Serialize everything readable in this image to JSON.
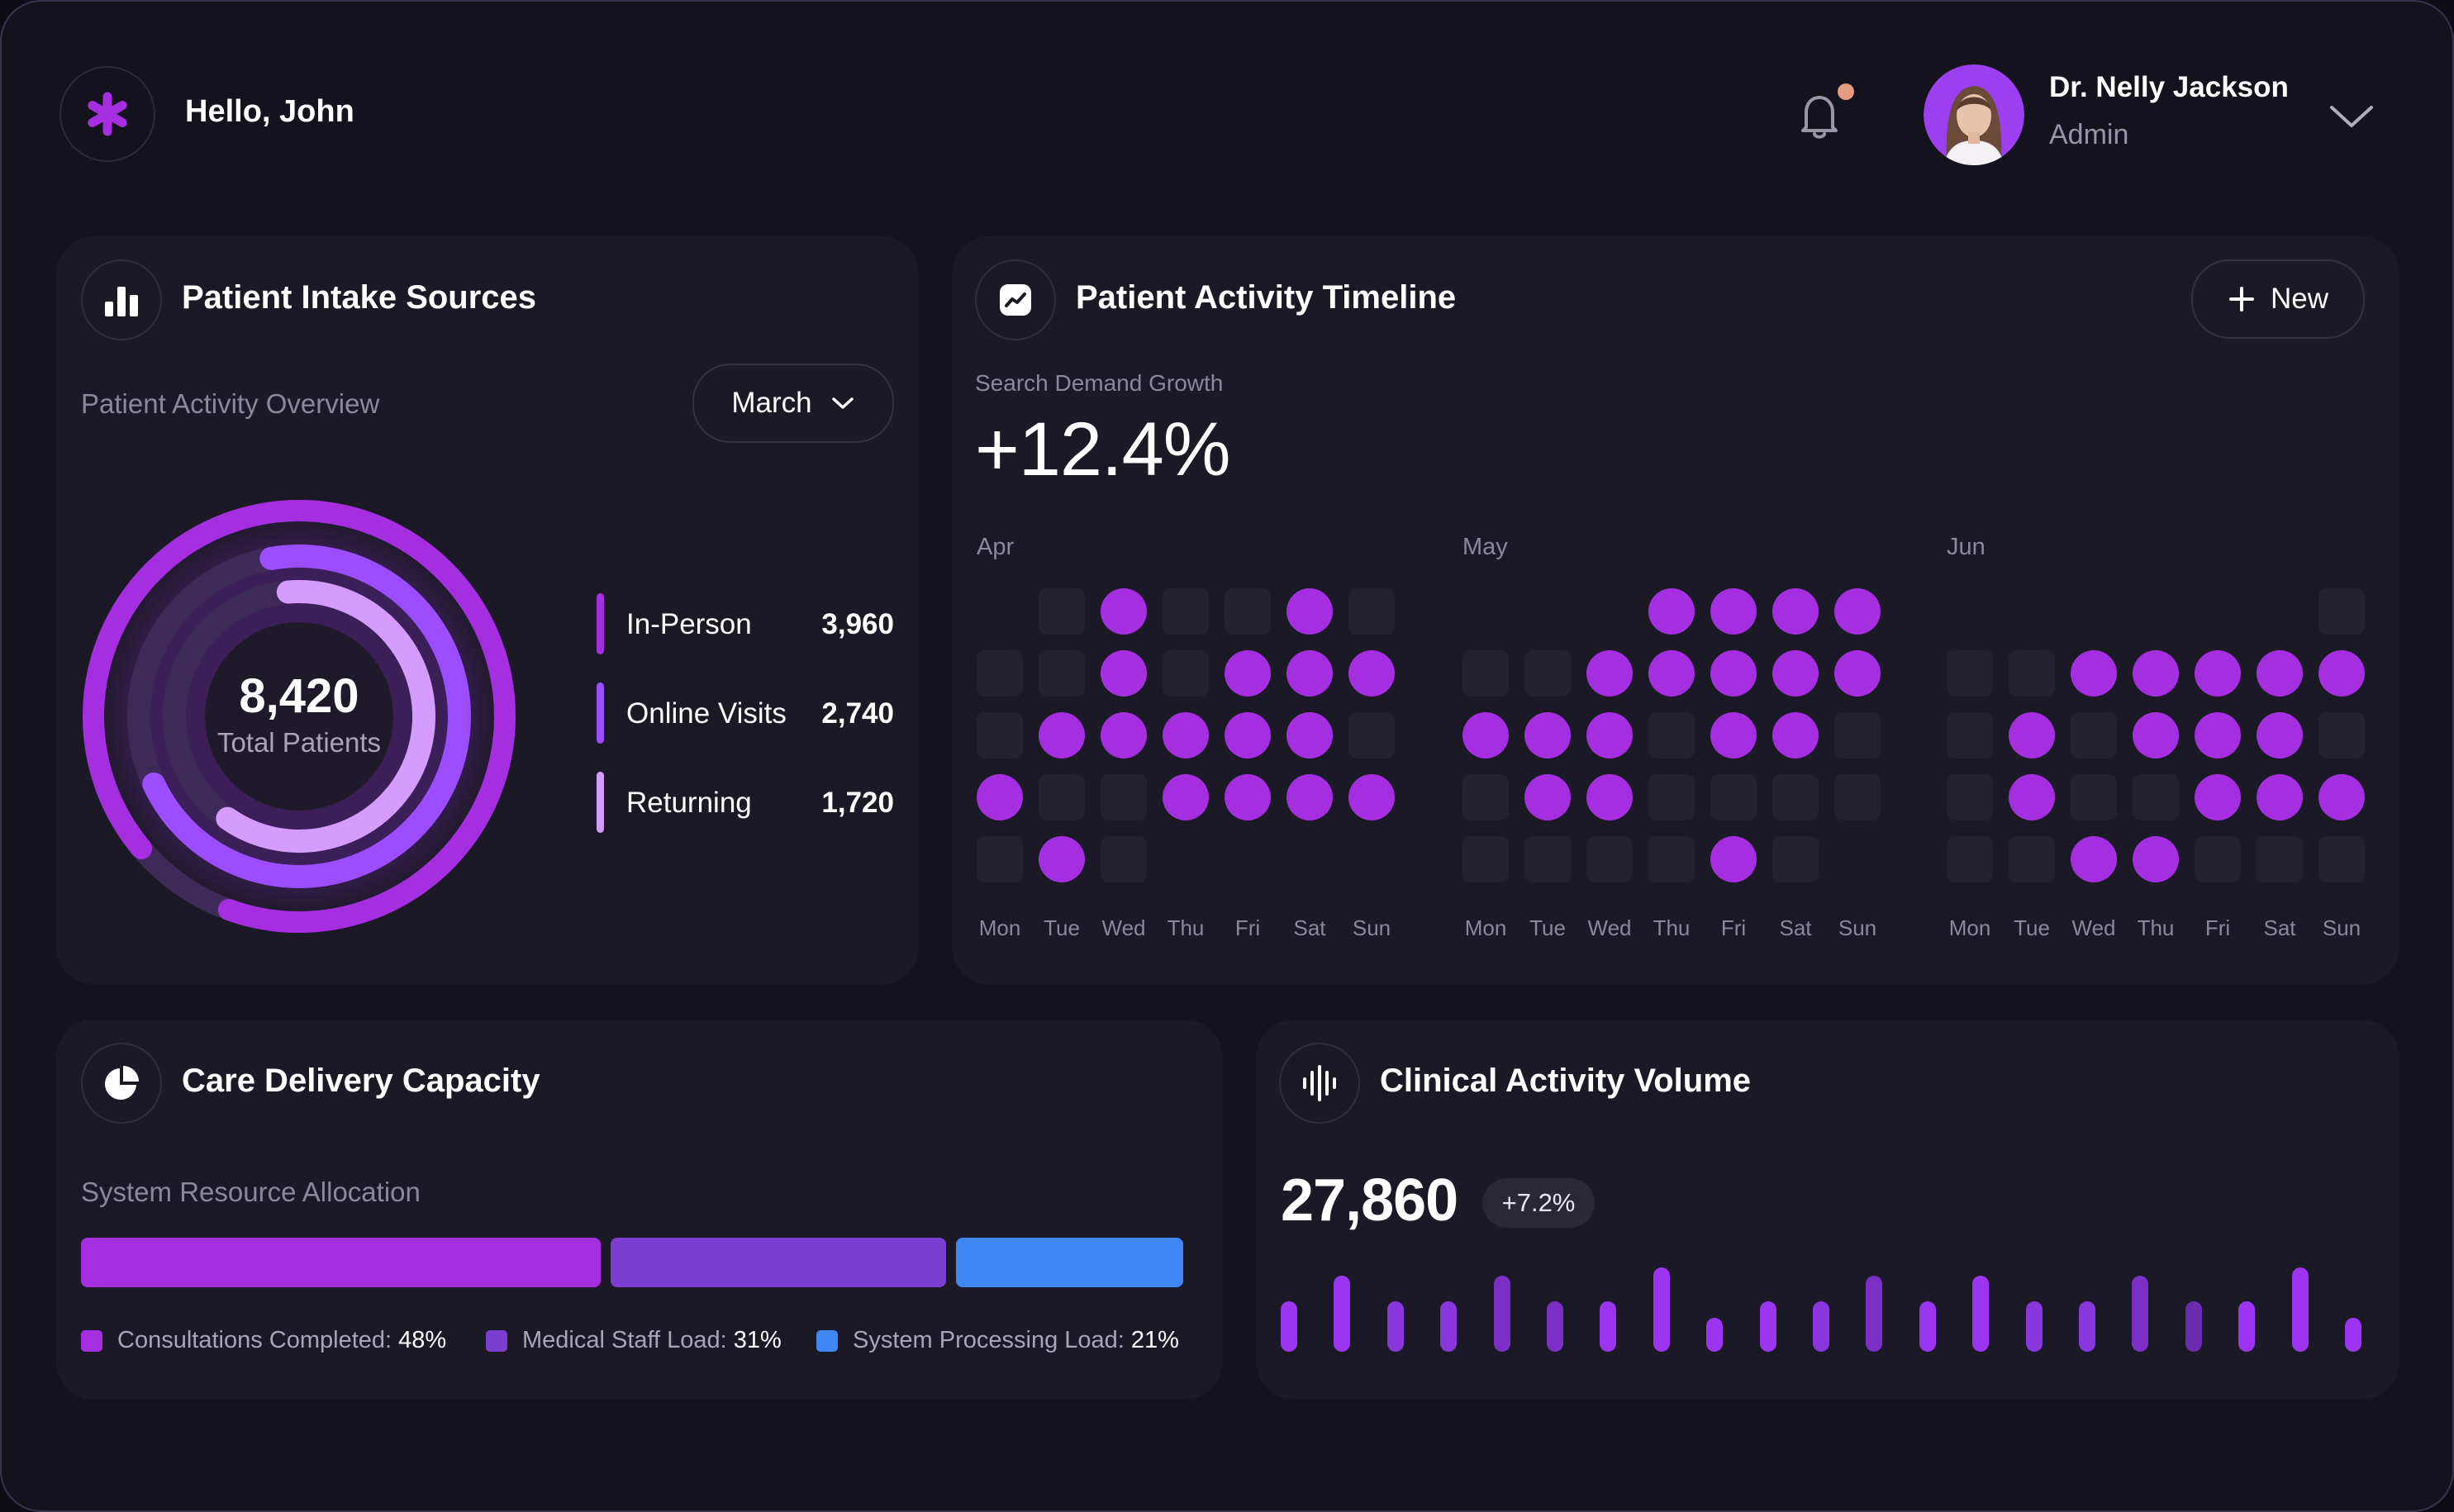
{
  "header": {
    "greeting": "Hello, John",
    "user_name": "Dr. Nelly Jackson",
    "user_role": "Admin",
    "logo_icon": "asterisk-icon",
    "notification_icon": "bell-icon"
  },
  "intake": {
    "title": "Patient Intake Sources",
    "subtitle": "Patient Activity Overview",
    "month_select": "March",
    "total_value": "8,420",
    "total_label": "Total Patients",
    "sources": [
      {
        "label": "In-Person",
        "value": "3,960",
        "color": "#a52fe0"
      },
      {
        "label": "Online Visits",
        "value": "2,740",
        "color": "#9b4dff"
      },
      {
        "label": "Returning",
        "value": "1,720",
        "color": "#d49cff"
      }
    ]
  },
  "timeline": {
    "title": "Patient Activity Timeline",
    "new_button": "New",
    "metric_label": "Search Demand Growth",
    "metric_value": "+12.4%",
    "days": [
      "Mon",
      "Tue",
      "Wed",
      "Thu",
      "Fri",
      "Sat",
      "Sun"
    ],
    "months": [
      {
        "name": "Apr",
        "grid": [
          [
            -1,
            0,
            1,
            0,
            0,
            1,
            0
          ],
          [
            0,
            0,
            1,
            0,
            1,
            1,
            1
          ],
          [
            0,
            1,
            1,
            1,
            1,
            1,
            0
          ],
          [
            1,
            0,
            0,
            1,
            1,
            1,
            1
          ],
          [
            0,
            1,
            0,
            -1,
            -1,
            -1,
            -1
          ]
        ]
      },
      {
        "name": "May",
        "grid": [
          [
            -1,
            -1,
            -1,
            1,
            1,
            1,
            1
          ],
          [
            0,
            0,
            1,
            1,
            1,
            1,
            1
          ],
          [
            1,
            1,
            1,
            0,
            1,
            1,
            0
          ],
          [
            0,
            1,
            1,
            0,
            0,
            0,
            0
          ],
          [
            0,
            0,
            0,
            0,
            1,
            0,
            -1
          ]
        ]
      },
      {
        "name": "Jun",
        "grid": [
          [
            -1,
            -1,
            -1,
            -1,
            -1,
            -1,
            0
          ],
          [
            0,
            0,
            1,
            1,
            1,
            1,
            1
          ],
          [
            0,
            1,
            0,
            1,
            1,
            1,
            0
          ],
          [
            0,
            1,
            0,
            0,
            1,
            1,
            1
          ],
          [
            0,
            0,
            1,
            1,
            0,
            0,
            0
          ]
        ]
      }
    ]
  },
  "capacity": {
    "title": "Care Delivery Capacity",
    "subtitle": "System Resource Allocation",
    "segments": [
      {
        "label": "Consultations Completed:",
        "value": "48%",
        "share": 48,
        "color": "#a52fe0"
      },
      {
        "label": "Medical Staff Load:",
        "value": "31%",
        "share": 31,
        "color": "#7b3fd0"
      },
      {
        "label": "System Processing Load:",
        "value": "21%",
        "share": 21,
        "color": "#3f86f7"
      }
    ]
  },
  "volume": {
    "title": "Clinical Activity Volume",
    "value": "27,860",
    "change": "+7.2%",
    "bars": [
      0.6,
      0.9,
      0.6,
      0.6,
      0.9,
      0.6,
      0.6,
      1.0,
      0.4,
      0.6,
      0.6,
      0.9,
      0.6,
      0.9,
      0.6,
      0.6,
      0.9,
      0.6,
      0.6,
      1.0,
      0.4
    ],
    "bar_colors": [
      "#9b35f0",
      "#9b35f0",
      "#8a36dd",
      "#8a36dd",
      "#7b2fc4",
      "#7b2fc4",
      "#9b35f0",
      "#9b35f0",
      "#9b35f0",
      "#9b35f0",
      "#8a36dd",
      "#7b2fc4",
      "#9b35f0",
      "#9b35f0",
      "#8a36dd",
      "#8a36dd",
      "#7b2fc4",
      "#6d2bb0",
      "#9b35f0",
      "#9b35f0",
      "#9b35f0"
    ]
  }
}
